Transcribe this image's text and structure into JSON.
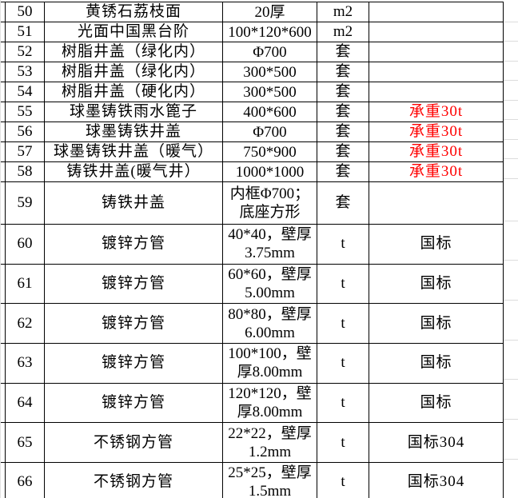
{
  "colors": {
    "table_border": "#000000",
    "gridline": "#d9d9d9",
    "note_red": "#ff0000",
    "text": "#000000",
    "background": "#ffffff"
  },
  "table": {
    "columns": [
      "row_number",
      "item_name",
      "spec",
      "unit",
      "note"
    ],
    "rows": [
      {
        "no": "50",
        "name": "黄锈石荔枝面",
        "spec": "20厚",
        "unit": "m2",
        "note": ""
      },
      {
        "no": "51",
        "name": "光面中国黑台阶",
        "spec": "100*120*600",
        "unit": "m2",
        "note": ""
      },
      {
        "no": "52",
        "name": "树脂井盖（绿化内）",
        "spec": "Φ700",
        "unit": "套",
        "note": ""
      },
      {
        "no": "53",
        "name": "树脂井盖（绿化内）",
        "spec": "300*500",
        "unit": "套",
        "note": ""
      },
      {
        "no": "54",
        "name": "树脂井盖（硬化内）",
        "spec": "300*500",
        "unit": "套",
        "note": ""
      },
      {
        "no": "55",
        "name": "球墨铸铁雨水篦子",
        "spec": "400*600",
        "unit": "套",
        "note": "承重30t",
        "note_color": "#ff0000"
      },
      {
        "no": "56",
        "name": "球墨铸铁井盖",
        "spec": "Φ700",
        "unit": "套",
        "note": "承重30t",
        "note_color": "#ff0000"
      },
      {
        "no": "57",
        "name": "球墨铸铁井盖（暖气）",
        "spec": "750*900",
        "unit": "套",
        "note": "承重30t",
        "note_color": "#ff0000"
      },
      {
        "no": "58",
        "name": "铸铁井盖(暖气井）",
        "spec": "1000*1000",
        "unit": "套",
        "note": "承重30t",
        "note_color": "#ff0000"
      },
      {
        "no": "59",
        "name": "铸铁井盖",
        "spec": "内框Φ700；\n底座方形",
        "unit": "套",
        "note": ""
      },
      {
        "no": "60",
        "name": "镀锌方管",
        "spec": "40*40，壁厚\n3.75mm",
        "unit": "t",
        "note": "国标"
      },
      {
        "no": "61",
        "name": "镀锌方管",
        "spec": "60*60，壁厚\n5.00mm",
        "unit": "t",
        "note": "国标"
      },
      {
        "no": "62",
        "name": "镀锌方管",
        "spec": "80*80，壁厚\n6.00mm",
        "unit": "t",
        "note": "国标"
      },
      {
        "no": "63",
        "name": "镀锌方管",
        "spec": "100*100，壁\n厚8.00mm",
        "unit": "t",
        "note": "国标"
      },
      {
        "no": "64",
        "name": "镀锌方管",
        "spec": "120*120，壁\n厚8.00mm",
        "unit": "t",
        "note": "国标"
      },
      {
        "no": "65",
        "name": "不锈钢方管",
        "spec": "22*22，壁厚\n1.2mm",
        "unit": "t",
        "note": "国标304"
      },
      {
        "no": "66",
        "name": "不锈钢方管",
        "spec": "25*25，壁厚\n1.5mm",
        "unit": "t",
        "note": "国标304"
      }
    ]
  }
}
